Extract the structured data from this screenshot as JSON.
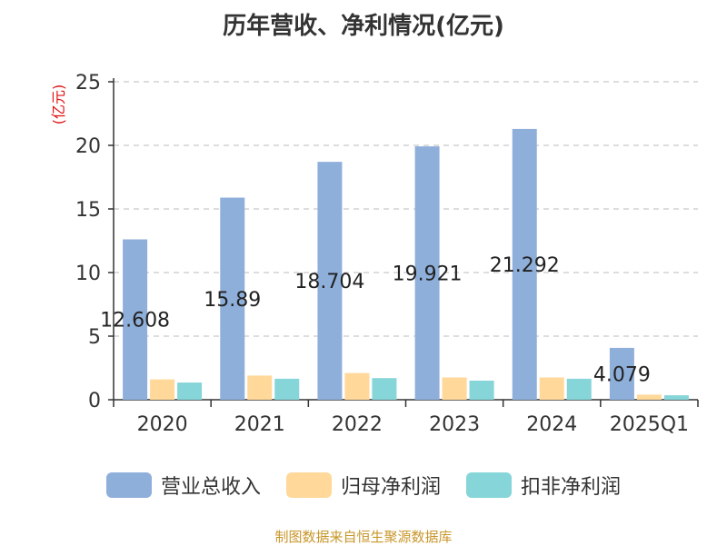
{
  "chart_data": {
    "type": "bar",
    "title": "历年营收、净利情况(亿元)",
    "ylabel": "(亿元)",
    "ylim": [
      0,
      25
    ],
    "yticks": [
      0,
      5,
      10,
      15,
      20,
      25
    ],
    "grid": true,
    "legend_position": "bottom",
    "categories": [
      "2020",
      "2021",
      "2022",
      "2023",
      "2024",
      "2025Q1"
    ],
    "series": [
      {
        "name": "营业总收入",
        "color": "#8fafdb",
        "values": [
          12.608,
          15.89,
          18.704,
          19.921,
          21.292,
          4.079
        ],
        "labels": [
          "12.608",
          "15.89",
          "18.704",
          "19.921",
          "21.292",
          "4.079"
        ]
      },
      {
        "name": "归母净利润",
        "color": "#ffd89a",
        "values": [
          1.6,
          1.9,
          2.1,
          1.75,
          1.75,
          0.4
        ]
      },
      {
        "name": "扣非净利润",
        "color": "#85d5d9",
        "values": [
          1.35,
          1.65,
          1.7,
          1.5,
          1.65,
          0.35
        ]
      }
    ]
  },
  "source_text": "制图数据来自恒生聚源数据库"
}
